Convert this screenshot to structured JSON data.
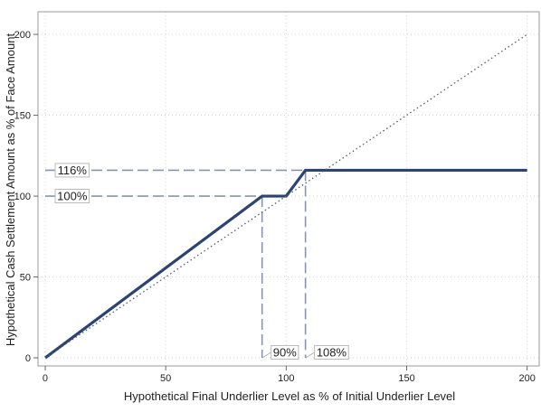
{
  "chart_data": {
    "type": "line",
    "title": "",
    "xlabel": "Hypothetical Final Underlier Level as % of Initial Underlier Level",
    "ylabel": "Hypothetical Cash Settlement Amount as % of Face Amount",
    "xlim": [
      -3,
      205
    ],
    "ylim": [
      -5,
      214
    ],
    "x_ticks": [
      0,
      50,
      100,
      150,
      200
    ],
    "y_ticks": [
      0,
      50,
      100,
      150,
      200
    ],
    "grid": true,
    "series": [
      {
        "style": "solid",
        "color": "#2b4470",
        "points": [
          [
            0,
            0
          ],
          [
            90,
            100
          ],
          [
            100,
            100
          ],
          [
            108,
            116
          ],
          [
            200,
            116
          ]
        ]
      },
      {
        "style": "dotted",
        "color": "#555b6e",
        "points": [
          [
            0,
            0
          ],
          [
            200,
            200
          ]
        ]
      }
    ],
    "reference_lines": {
      "color": "#8a94b0",
      "horizontal": [
        {
          "y": 116,
          "x_end": 108,
          "label": "116%"
        },
        {
          "y": 100,
          "x_end": 90,
          "label": "100%"
        }
      ],
      "vertical": [
        {
          "x": 90,
          "y_end": 100,
          "label": "90%"
        },
        {
          "x": 108,
          "y_end": 116,
          "label": "108%"
        }
      ]
    }
  }
}
